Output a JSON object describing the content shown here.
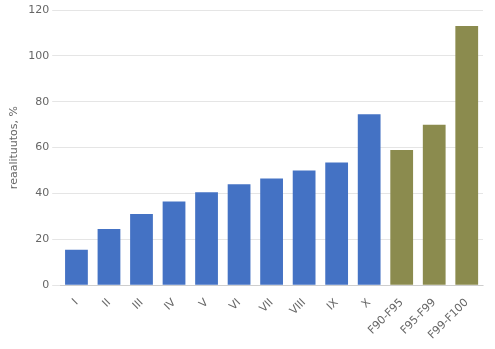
{
  "chart_data": {
    "type": "bar",
    "categories": [
      "I",
      "II",
      "III",
      "IV",
      "V",
      "VI",
      "VII",
      "VIII",
      "IX",
      "X",
      "F90-F95",
      "F95-F99",
      "F99-F100"
    ],
    "values": [
      15.5,
      24.5,
      31.0,
      36.5,
      40.5,
      44.0,
      46.5,
      50.0,
      53.5,
      74.5,
      59.0,
      70.0,
      113.0
    ],
    "colors": [
      "#4472C4",
      "#4472C4",
      "#4472C4",
      "#4472C4",
      "#4472C4",
      "#4472C4",
      "#4472C4",
      "#4472C4",
      "#4472C4",
      "#4472C4",
      "#8B8B4E",
      "#8B8B4E",
      "#8B8B4E"
    ],
    "ylabel": "reaalituutos, %",
    "ylim": [
      0,
      120
    ],
    "yticks": [
      0,
      20,
      40,
      60,
      80,
      100,
      120
    ],
    "grid": true
  }
}
